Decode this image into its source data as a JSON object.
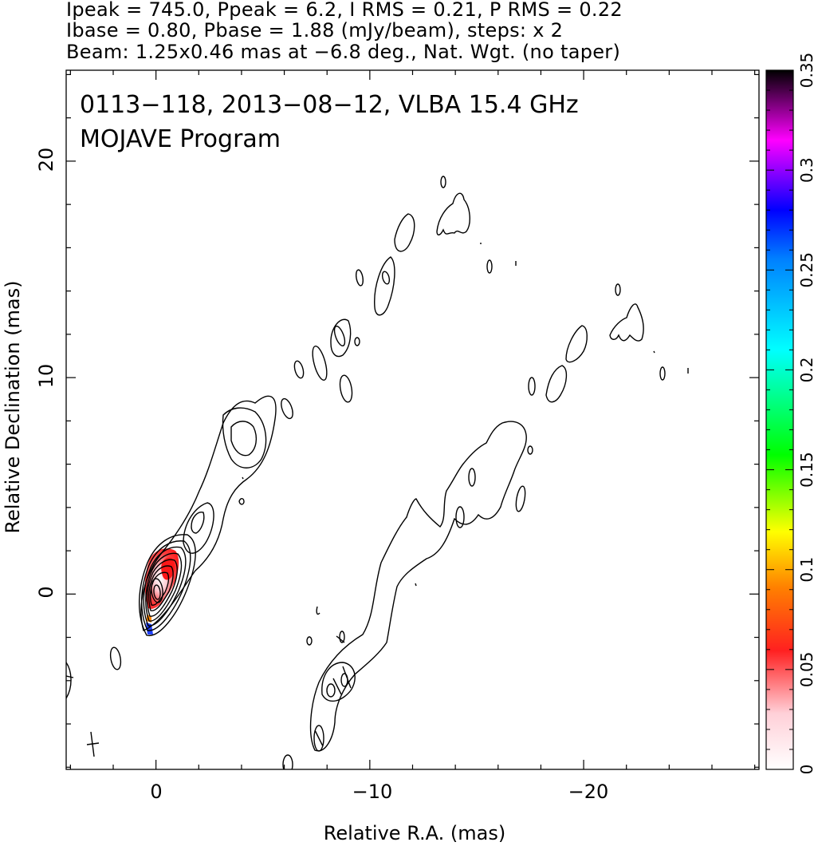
{
  "header": {
    "line1": "Ipeak = 745.0, Ppeak = 6.2, I RMS = 0.21, P RMS = 0.22",
    "line2": "Ibase = 0.80, Pbase = 1.88 (mJy/beam), steps: x 2",
    "line3": "Beam: 1.25x0.46 mas at −6.8 deg., Nat. Wgt. (no taper)"
  },
  "panel": {
    "label1": "0113−118, 2013−08−12, VLBA 15.4 GHz",
    "label2": "MOJAVE Program"
  },
  "colorbar": {
    "ticks": [
      "0",
      "0.05",
      "0.1",
      "0.15",
      "0.2",
      "0.25",
      "0.3",
      "0.35"
    ],
    "colormap": [
      "#ffffff",
      "#ffd0d8",
      "#ff2020",
      "#ff8000",
      "#ffff00",
      "#00ff00",
      "#00ffff",
      "#0080ff",
      "#0000ff",
      "#ff00ff",
      "#000000"
    ]
  },
  "chart_data": {
    "type": "contour",
    "title": "0113−118, 2013−08−12, VLBA 15.4 GHz",
    "xlabel": "Relative R.A. (mas)",
    "ylabel": "Relative Declination (mas)",
    "xlim": [
      4.2,
      -28.2
    ],
    "ylim": [
      -8.1,
      24.2
    ],
    "x_tick_labels": [
      "0",
      "−10",
      "−20"
    ],
    "y_tick_labels": [
      "0",
      "10",
      "20"
    ],
    "colorbar_range": [
      0,
      0.35
    ],
    "total_intensity_peak_mJy_per_beam": 745.0,
    "polarized_peak_mJy_per_beam": 6.2,
    "contour_base_I_mJy_per_beam": 0.8,
    "contour_base_P_mJy_per_beam": 1.88,
    "contour_step_factor": 2,
    "beam": {
      "major_mas": 1.25,
      "minor_mas": 0.46,
      "pa_deg": -6.8
    }
  }
}
